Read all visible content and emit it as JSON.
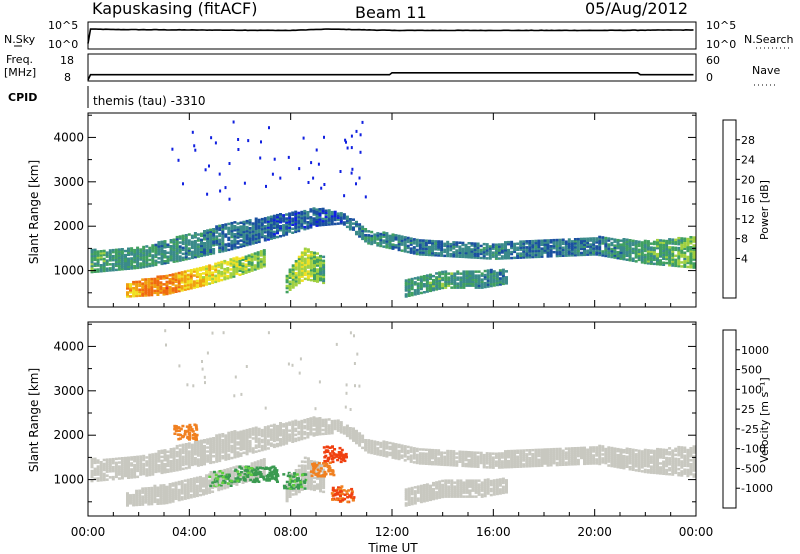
{
  "header": {
    "station": "Kapuskasing (fitACF)",
    "beam": "Beam 11",
    "date": "05/Aug/2012"
  },
  "noise_panel": {
    "left_label": "N.Sky",
    "right_label": "N.Search",
    "left_ticks": [
      "10^5",
      "10^0"
    ],
    "right_ticks": [
      "10^5",
      "10^0"
    ]
  },
  "freq_panel": {
    "left_label_1": "Freq.",
    "left_label_2": "[MHz]",
    "right_label": "Nave",
    "left_ticks": [
      "18",
      "8"
    ],
    "right_ticks": [
      "60",
      "0"
    ]
  },
  "cpid_panel": {
    "label": "CPID",
    "text": "themis (tau) -3310"
  },
  "axes": {
    "ylabel": "Slant Range [km]",
    "xlabel": "Time UT",
    "y_ticks": [
      "1000",
      "2000",
      "3000",
      "4000"
    ],
    "x_ticks": [
      "00:00",
      "04:00",
      "08:00",
      "12:00",
      "16:00",
      "20:00",
      "00:00"
    ]
  },
  "power_colorbar": {
    "title": "Power [dB]",
    "labels": [
      "28",
      "24",
      "20",
      "16",
      "12",
      "8",
      "4"
    ],
    "colors": [
      "#e8321e",
      "#f06a10",
      "#f0a010",
      "#f0e020",
      "#a0d040",
      "#40a060",
      "#3a8a8a",
      "#1a50a0",
      "#1020e0"
    ]
  },
  "velocity_colorbar": {
    "title": "Velocity [m s⁻¹]",
    "labels": [
      "1000",
      "500",
      "100",
      "25",
      "-25",
      "-100",
      "-500",
      "-1000"
    ],
    "colors": [
      "#1a40c0",
      "#3a70a0",
      "#3a9a50",
      "#60d040",
      "#c8c8c0",
      "#f0b020",
      "#f08020",
      "#f04010",
      "#e00000"
    ]
  },
  "chart_data": [
    {
      "type": "line",
      "title": "N.Sky / N.Search",
      "x_range_hours": [
        0,
        24
      ],
      "series": [
        {
          "name": "N.Sky",
          "x": [
            0,
            0.05,
            0.1,
            1,
            4,
            8,
            9.5,
            12,
            16,
            20,
            23.9
          ],
          "y": [
            1,
            1,
            4.3,
            4.2,
            4.1,
            4.0,
            4.3,
            4.0,
            4.0,
            4.0,
            4.1
          ]
        }
      ]
    },
    {
      "type": "line",
      "title": "Freq. / Nave",
      "x_range_hours": [
        0,
        24
      ],
      "series": [
        {
          "name": "Freq.",
          "x": [
            0,
            0.1,
            11.9,
            12.0,
            21.7,
            21.8,
            24
          ],
          "y": [
            8,
            10.2,
            10.2,
            11.0,
            11.0,
            10.2,
            10.2
          ]
        }
      ]
    },
    {
      "type": "heatmap",
      "title": "Power [dB]",
      "xlabel": "Time UT",
      "ylabel": "Slant Range [km]",
      "x_range_hours": [
        0,
        24
      ],
      "y_range_km": [
        180,
        4550
      ],
      "bands": [
        {
          "x": [
            0.1,
            2.0,
            3.5,
            5.5,
            7.5,
            9.0,
            10.0,
            11.0,
            13.0,
            16.0,
            18.0,
            20.0,
            22.0,
            23.9
          ],
          "y_low": [
            950,
            1050,
            1200,
            1450,
            1750,
            2000,
            2050,
            1600,
            1350,
            1250,
            1300,
            1350,
            1150,
            1050
          ],
          "y_high": [
            1450,
            1500,
            1750,
            2050,
            2250,
            2400,
            2300,
            1900,
            1700,
            1600,
            1700,
            1750,
            1650,
            1750
          ],
          "power": [
            12,
            10,
            10,
            8,
            6,
            6,
            6,
            10,
            8,
            8,
            8,
            8,
            12,
            14
          ]
        },
        {
          "x": [
            1.5,
            3.0,
            4.5,
            6.0,
            7.0
          ],
          "y_low": [
            400,
            450,
            650,
            900,
            1100
          ],
          "y_high": [
            700,
            900,
            1100,
            1300,
            1500
          ],
          "power": [
            22,
            26,
            20,
            16,
            14
          ]
        },
        {
          "x": [
            7.8,
            8.5,
            9.3
          ],
          "y_low": [
            500,
            800,
            700
          ],
          "y_high": [
            900,
            1500,
            1300
          ],
          "power": [
            14,
            18,
            12
          ]
        },
        {
          "x": [
            12.5,
            14.0,
            15.5,
            16.5
          ],
          "y_low": [
            400,
            600,
            600,
            700
          ],
          "y_high": [
            800,
            1000,
            1000,
            1000
          ],
          "power": [
            10,
            12,
            10,
            8
          ]
        }
      ]
    },
    {
      "type": "heatmap",
      "title": "Velocity [m s⁻¹]",
      "xlabel": "Time UT",
      "ylabel": "Slant Range [km]",
      "x_range_hours": [
        0,
        24
      ],
      "y_range_km": [
        180,
        4550
      ],
      "mostly": "ground scatter (grey)",
      "highlights": [
        {
          "t": 3.8,
          "range": 2100,
          "velocity": -200
        },
        {
          "t": 6.2,
          "range": 1150,
          "velocity": 100
        },
        {
          "t": 7.0,
          "range": 1150,
          "velocity": 150
        },
        {
          "t": 8.1,
          "range": 1000,
          "velocity": 80
        },
        {
          "t": 9.2,
          "range": 1250,
          "velocity": -150
        },
        {
          "t": 9.7,
          "range": 1600,
          "velocity": -400
        },
        {
          "t": 10.0,
          "range": 700,
          "velocity": -300
        },
        {
          "t": 5.2,
          "range": 1050,
          "velocity": 60
        }
      ]
    }
  ]
}
